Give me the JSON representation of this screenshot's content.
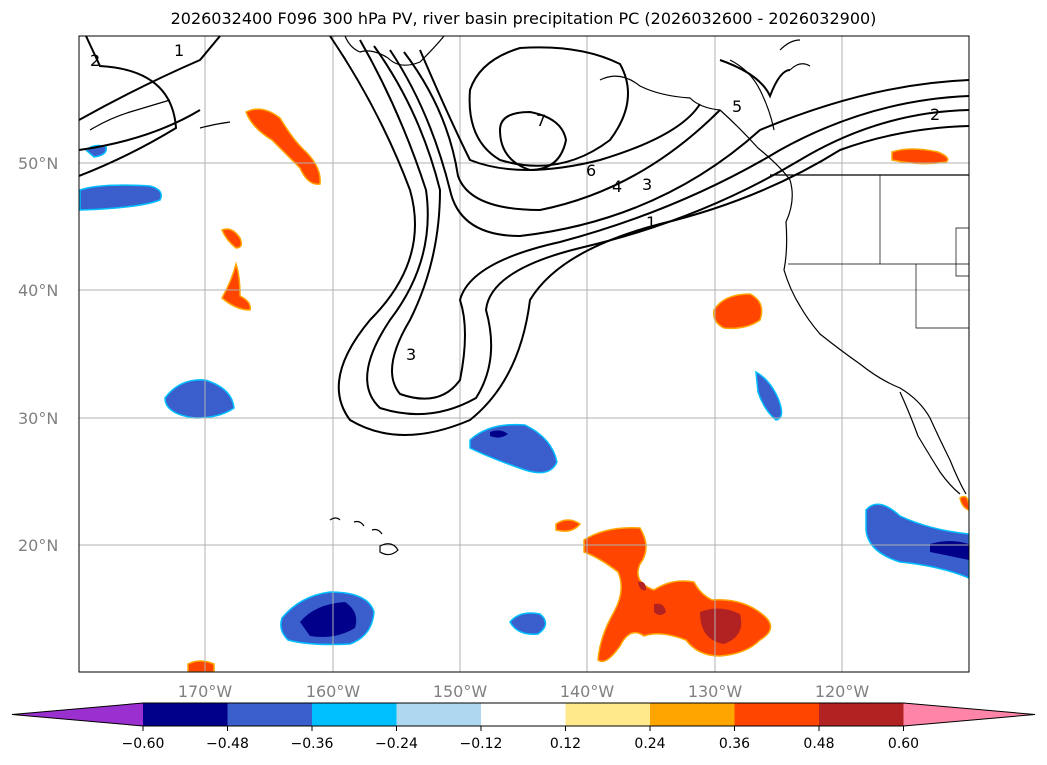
{
  "title": "2026032400 F096 300 hPa PV, river basin precipitation PC (2026032600 - 2026032900)",
  "map": {
    "lon_range": [
      -180,
      -110
    ],
    "lat_range": [
      10,
      60
    ],
    "lat_labels": [
      "50°N",
      "40°N",
      "30°N",
      "20°N"
    ],
    "lon_labels": [
      "170°W",
      "160°W",
      "150°W",
      "140°W",
      "130°W",
      "120°W"
    ],
    "pv_contour_labels": [
      "2",
      "1",
      "7",
      "6",
      "5",
      "4",
      "3",
      "1",
      "2",
      "3"
    ]
  },
  "colorbar": {
    "ticks": [
      "−0.60",
      "−0.48",
      "−0.36",
      "−0.24",
      "−0.12",
      "0.12",
      "0.24",
      "0.36",
      "0.48",
      "0.60"
    ],
    "colors": [
      "#9b30d0",
      "#00008b",
      "#3a5fcd",
      "#00bfff",
      "#add8f0",
      "#ffffff",
      "#ffe98a",
      "#ffa500",
      "#ff4500",
      "#b22222",
      "#ff85a8"
    ]
  }
}
